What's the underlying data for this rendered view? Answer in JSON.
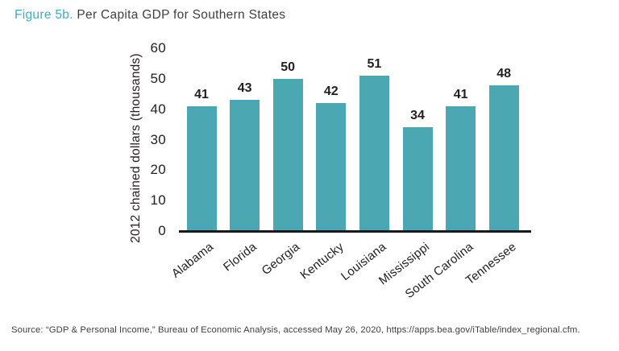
{
  "figure": {
    "label": "Figure 5b.",
    "title": " Per Capita GDP for Southern States"
  },
  "source": "Source: “GDP & Personal Income,” Bureau of Economic Analysis, accessed May 26, 2020, https://apps.bea.gov/iTable/index_regional.cfm.",
  "colors": {
    "bar": "#4ba8b2",
    "figure_label": "#45a9be",
    "axis": "#1a1a1a",
    "text": "#242021"
  },
  "chart_data": {
    "type": "bar",
    "categories": [
      "Alabama",
      "Florida",
      "Georgia",
      "Kentucky",
      "Louisiana",
      "Mississippi",
      "South Carolina",
      "Tennessee"
    ],
    "values": [
      41,
      43,
      50,
      42,
      51,
      34,
      41,
      48
    ],
    "title": "Figure 5b. Per Capita GDP for Southern States",
    "xlabel": "",
    "ylabel": "2012 chained dollars (thousands)",
    "ylim": [
      0,
      60
    ],
    "yticks": [
      0,
      10,
      20,
      30,
      40,
      50,
      60
    ],
    "grid": false,
    "legend_position": "none",
    "value_labels": true
  }
}
